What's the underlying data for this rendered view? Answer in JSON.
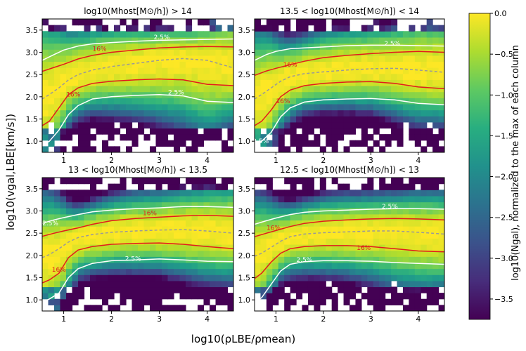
{
  "figure": {
    "xlabel": "log10(ρLBE/ρmean)",
    "ylabel": "log10(vgal,LBE[km/s])",
    "colorbar_label": "log10(Ngal), normalized to the max of each column"
  },
  "chart_data": [
    {
      "type": "heatmap",
      "title": "log10(Mhost[M⊙/h]) > 14",
      "xlim": [
        0.55,
        4.55
      ],
      "ylim": [
        0.75,
        3.75
      ],
      "xticks": [
        1,
        2,
        3,
        4
      ],
      "yticks": [
        1.0,
        1.5,
        2.0,
        2.5,
        3.0,
        3.5
      ],
      "contours": [
        {
          "label": "2.5%",
          "color": "#ffffff",
          "style": "solid",
          "x": [
            0.55,
            0.8,
            1.0,
            1.3,
            1.6,
            2.0,
            2.5,
            3.0,
            3.5,
            4.0,
            4.55
          ],
          "y": [
            2.82,
            2.95,
            3.05,
            3.14,
            3.19,
            3.22,
            3.25,
            3.27,
            3.28,
            3.29,
            3.3
          ]
        },
        {
          "label": "16%",
          "color": "#e31a1c",
          "style": "solid",
          "x": [
            0.55,
            0.8,
            1.0,
            1.3,
            1.6,
            2.0,
            2.5,
            3.0,
            3.5,
            4.0,
            4.55
          ],
          "y": [
            2.57,
            2.66,
            2.73,
            2.85,
            2.93,
            3.0,
            3.05,
            3.1,
            3.12,
            3.13,
            3.12
          ]
        },
        {
          "label": "",
          "color": "#999999",
          "style": "dashed",
          "x": [
            0.55,
            0.7,
            0.9,
            1.1,
            1.3,
            1.6,
            2.0,
            2.5,
            3.0,
            3.5,
            4.0,
            4.55
          ],
          "y": [
            1.95,
            2.05,
            2.2,
            2.38,
            2.5,
            2.6,
            2.68,
            2.75,
            2.82,
            2.86,
            2.82,
            2.65
          ]
        },
        {
          "label": "16%",
          "color": "#e31a1c",
          "style": "solid",
          "x": [
            0.55,
            0.7,
            0.9,
            1.1,
            1.3,
            1.6,
            2.0,
            2.5,
            3.0,
            3.5,
            4.0,
            4.55
          ],
          "y": [
            1.35,
            1.45,
            1.75,
            2.05,
            2.2,
            2.3,
            2.35,
            2.38,
            2.4,
            2.38,
            2.28,
            2.25
          ]
        },
        {
          "label": "2.5%",
          "color": "#ffffff",
          "style": "solid",
          "x": [
            0.55,
            0.7,
            0.9,
            1.1,
            1.3,
            1.6,
            2.0,
            2.5,
            3.0,
            3.5,
            4.0,
            4.55
          ],
          "y": [
            0.9,
            1.0,
            1.25,
            1.6,
            1.8,
            1.95,
            2.0,
            2.03,
            2.05,
            2.02,
            1.9,
            1.87
          ]
        }
      ]
    },
    {
      "type": "heatmap",
      "title": "13.5 < log10(Mhost[M⊙/h]) < 14",
      "xlim": [
        0.55,
        4.55
      ],
      "ylim": [
        0.75,
        3.75
      ],
      "xticks": [
        1,
        2,
        3,
        4
      ],
      "yticks": [
        1.0,
        1.5,
        2.0,
        2.5,
        3.0,
        3.5
      ],
      "contours": [
        {
          "label": "2.5%",
          "color": "#ffffff",
          "style": "solid",
          "x": [
            0.55,
            0.8,
            1.0,
            1.3,
            1.6,
            2.0,
            2.5,
            3.0,
            3.5,
            4.0,
            4.55
          ],
          "y": [
            2.82,
            2.95,
            3.02,
            3.08,
            3.1,
            3.12,
            3.15,
            3.16,
            3.16,
            3.15,
            3.14
          ]
        },
        {
          "label": "16%",
          "color": "#e31a1c",
          "style": "solid",
          "x": [
            0.55,
            0.8,
            1.0,
            1.3,
            1.6,
            2.0,
            2.5,
            3.0,
            3.5,
            4.0,
            4.55
          ],
          "y": [
            2.48,
            2.58,
            2.64,
            2.72,
            2.8,
            2.88,
            2.93,
            2.97,
            3.0,
            3.02,
            3.0
          ]
        },
        {
          "label": "",
          "color": "#999999",
          "style": "dashed",
          "x": [
            0.55,
            0.7,
            0.9,
            1.1,
            1.3,
            1.6,
            2.0,
            2.5,
            3.0,
            3.5,
            4.0,
            4.55
          ],
          "y": [
            1.95,
            2.05,
            2.2,
            2.35,
            2.45,
            2.52,
            2.56,
            2.6,
            2.63,
            2.64,
            2.6,
            2.55
          ]
        },
        {
          "label": "16%",
          "color": "#e31a1c",
          "style": "solid",
          "x": [
            0.55,
            0.7,
            0.9,
            1.1,
            1.3,
            1.6,
            2.0,
            2.5,
            3.0,
            3.5,
            4.0,
            4.55
          ],
          "y": [
            1.35,
            1.45,
            1.7,
            2.0,
            2.15,
            2.25,
            2.3,
            2.33,
            2.34,
            2.3,
            2.22,
            2.18
          ]
        },
        {
          "label": "2.5%",
          "color": "#ffffff",
          "style": "solid",
          "x": [
            0.55,
            0.7,
            0.9,
            1.1,
            1.3,
            1.6,
            2.0,
            2.5,
            3.0,
            3.5,
            4.0,
            4.55
          ],
          "y": [
            0.92,
            1.0,
            1.2,
            1.55,
            1.75,
            1.88,
            1.93,
            1.95,
            1.96,
            1.93,
            1.85,
            1.82
          ]
        }
      ]
    },
    {
      "type": "heatmap",
      "title": "13 < log10(Mhost[M⊙/h]) < 13.5",
      "xlim": [
        0.55,
        4.55
      ],
      "ylim": [
        0.75,
        3.75
      ],
      "xticks": [
        1,
        2,
        3,
        4
      ],
      "yticks": [
        1.0,
        1.5,
        2.0,
        2.5,
        3.0,
        3.5
      ],
      "contours": [
        {
          "label": "2.5%",
          "color": "#ffffff",
          "style": "solid",
          "x": [
            0.55,
            0.8,
            1.0,
            1.3,
            1.6,
            2.0,
            2.5,
            3.0,
            3.5,
            4.0,
            4.55
          ],
          "y": [
            2.72,
            2.8,
            2.85,
            2.92,
            2.98,
            3.02,
            3.05,
            3.07,
            3.1,
            3.1,
            3.08
          ]
        },
        {
          "label": "16%",
          "color": "#e31a1c",
          "style": "solid",
          "x": [
            0.55,
            0.8,
            1.0,
            1.3,
            1.6,
            2.0,
            2.5,
            3.0,
            3.5,
            4.0,
            4.55
          ],
          "y": [
            2.43,
            2.5,
            2.55,
            2.62,
            2.7,
            2.78,
            2.83,
            2.86,
            2.89,
            2.9,
            2.88
          ]
        },
        {
          "label": "",
          "color": "#999999",
          "style": "dashed",
          "x": [
            0.55,
            0.7,
            0.9,
            1.1,
            1.3,
            1.6,
            2.0,
            2.5,
            3.0,
            3.5,
            4.0,
            4.55
          ],
          "y": [
            1.95,
            2.02,
            2.15,
            2.3,
            2.4,
            2.47,
            2.52,
            2.55,
            2.57,
            2.58,
            2.55,
            2.5
          ]
        },
        {
          "label": "16%",
          "color": "#e31a1c",
          "style": "solid",
          "x": [
            0.55,
            0.7,
            0.9,
            1.1,
            1.3,
            1.6,
            2.0,
            2.5,
            3.0,
            3.5,
            4.0,
            4.55
          ],
          "y": [
            1.38,
            1.45,
            1.6,
            1.95,
            2.12,
            2.2,
            2.25,
            2.27,
            2.28,
            2.25,
            2.2,
            2.15
          ]
        },
        {
          "label": "2.5%",
          "color": "#ffffff",
          "style": "solid",
          "x": [
            0.55,
            0.7,
            0.9,
            1.1,
            1.3,
            1.6,
            2.0,
            2.5,
            3.0,
            3.5,
            4.0,
            4.55
          ],
          "y": [
            0.95,
            1.02,
            1.15,
            1.5,
            1.7,
            1.82,
            1.88,
            1.9,
            1.92,
            1.9,
            1.87,
            1.86
          ]
        }
      ]
    },
    {
      "type": "heatmap",
      "title": "12.5 < log10(Mhost[M⊙/h]) < 13",
      "xlim": [
        0.55,
        4.55
      ],
      "ylim": [
        0.75,
        3.75
      ],
      "xticks": [
        1,
        2,
        3,
        4
      ],
      "yticks": [
        1.0,
        1.5,
        2.0,
        2.5,
        3.0,
        3.5
      ],
      "contours": [
        {
          "label": "2.5%",
          "color": "#ffffff",
          "style": "solid",
          "x": [
            0.55,
            0.8,
            1.0,
            1.3,
            1.6,
            2.0,
            2.5,
            3.0,
            3.5,
            4.0,
            4.55
          ],
          "y": [
            2.7,
            2.78,
            2.84,
            2.92,
            2.97,
            3.0,
            3.02,
            3.04,
            3.05,
            3.05,
            3.04
          ]
        },
        {
          "label": "16%",
          "color": "#e31a1c",
          "style": "solid",
          "x": [
            0.55,
            0.8,
            1.0,
            1.3,
            1.6,
            2.0,
            2.5,
            3.0,
            3.5,
            4.0,
            4.55
          ],
          "y": [
            2.42,
            2.5,
            2.56,
            2.65,
            2.72,
            2.77,
            2.8,
            2.82,
            2.83,
            2.82,
            2.8
          ]
        },
        {
          "label": "",
          "color": "#999999",
          "style": "dashed",
          "x": [
            0.55,
            0.7,
            0.9,
            1.1,
            1.3,
            1.6,
            2.0,
            2.5,
            3.0,
            3.5,
            4.0,
            4.55
          ],
          "y": [
            1.98,
            2.05,
            2.18,
            2.32,
            2.42,
            2.48,
            2.51,
            2.53,
            2.55,
            2.55,
            2.52,
            2.48
          ]
        },
        {
          "label": "16%",
          "color": "#e31a1c",
          "style": "solid",
          "x": [
            0.55,
            0.7,
            0.9,
            1.1,
            1.3,
            1.6,
            2.0,
            2.5,
            3.0,
            3.5,
            4.0,
            4.55
          ],
          "y": [
            1.48,
            1.6,
            1.85,
            2.05,
            2.15,
            2.2,
            2.22,
            2.22,
            2.2,
            2.15,
            2.1,
            2.08
          ]
        },
        {
          "label": "2.5%",
          "color": "#ffffff",
          "style": "solid",
          "x": [
            0.55,
            0.7,
            0.9,
            1.1,
            1.3,
            1.6,
            2.0,
            2.5,
            3.0,
            3.5,
            4.0,
            4.55
          ],
          "y": [
            0.95,
            1.05,
            1.35,
            1.65,
            1.8,
            1.86,
            1.88,
            1.88,
            1.87,
            1.84,
            1.82,
            1.8
          ]
        }
      ]
    }
  ],
  "colorbar": {
    "range": [
      -3.75,
      0.0
    ],
    "ticks": [
      "0.0",
      "−0.5",
      "−1.0",
      "−1.5",
      "−2.0",
      "−2.5",
      "−3.0",
      "−3.5"
    ],
    "tick_values": [
      0.0,
      -0.5,
      -1.0,
      -1.5,
      -2.0,
      -2.5,
      -3.0,
      -3.5
    ],
    "colormap": "viridis"
  },
  "contour_levels": [
    "2.5%",
    "16%"
  ],
  "colors": {
    "contour_2p5": "#ffffff",
    "contour_16": "#e31a1c",
    "median": "#999999"
  }
}
